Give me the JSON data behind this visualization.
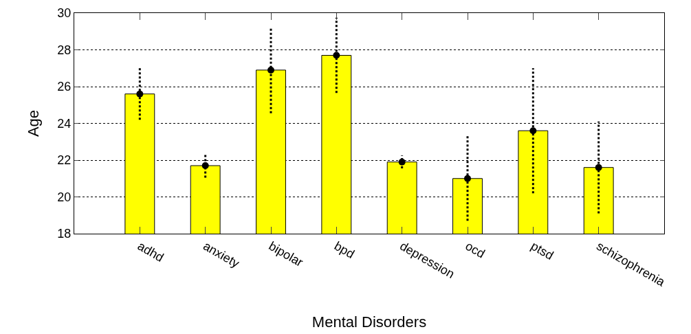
{
  "chart_data": {
    "type": "bar",
    "xlabel": "Mental Disorders",
    "ylabel": "Age",
    "categories": [
      "adhd",
      "anxiety",
      "bipolar",
      "bpd",
      "depression",
      "ocd",
      "ptsd",
      "schizophrenia"
    ],
    "series": [
      {
        "color": "#ffff00",
        "values": [
          25.6,
          21.7,
          26.9,
          27.7,
          21.9,
          21.0,
          23.6,
          21.6
        ]
      },
      {
        "type": "scatter",
        "color": "#000000",
        "x": [
          "adhd",
          "anxiety",
          "bipolar",
          "bpd",
          "depression",
          "ocd",
          "ptsd",
          "schizophrenia"
        ],
        "values": [
          25.6,
          21.7,
          26.9,
          27.7,
          21.9,
          21.0,
          23.6,
          21.6
        ],
        "errors": [
          1.4,
          0.65,
          2.35,
          2.05,
          0.35,
          2.3,
          3.4,
          2.5
        ]
      }
    ],
    "marker": "circle",
    "line_style": "dotted",
    "ylim": [
      18,
      30
    ],
    "yticks": [
      18,
      20,
      22,
      24,
      26,
      28,
      30
    ],
    "grid": "y"
  }
}
